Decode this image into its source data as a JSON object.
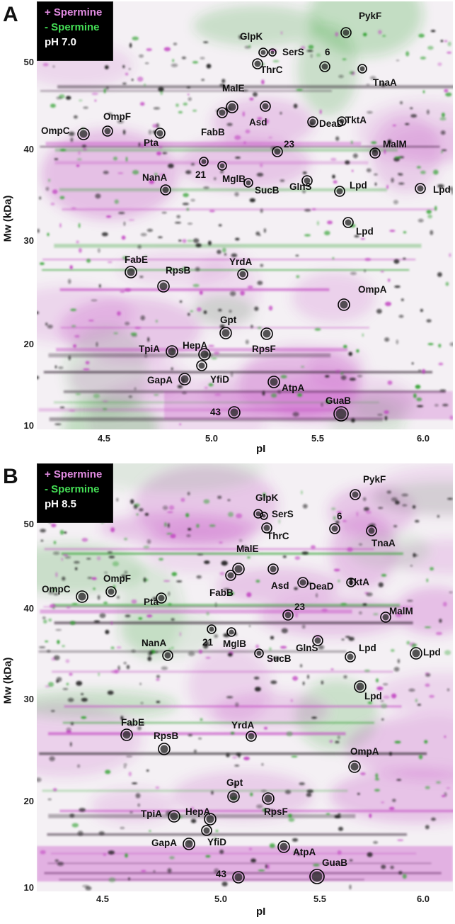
{
  "figure": {
    "legend": {
      "plus": "+ Spermine",
      "minus": "- Spermine"
    },
    "colors": {
      "spermine_plus": "#c040c0",
      "spermine_minus": "#2ca02c",
      "background": "#f4f0f4"
    },
    "y_axis": {
      "label": "Mw (kDa)",
      "ticks": [
        "50",
        "40",
        "30",
        "20",
        "10"
      ]
    },
    "x_axis": {
      "label": "pI",
      "ticks": [
        "4.5",
        "5.0",
        "5.5",
        "6.0"
      ]
    },
    "panels": [
      {
        "letter": "A",
        "ph": "pH 7.0",
        "spots": [
          {
            "label": "PykF"
          },
          {
            "label": "GlpK"
          },
          {
            "label": "SerS"
          },
          {
            "label": "6"
          },
          {
            "label": "ThrC"
          },
          {
            "label": "TnaA"
          },
          {
            "label": "MalE"
          },
          {
            "label": "OmpC"
          },
          {
            "label": "OmpF"
          },
          {
            "label": "FabB"
          },
          {
            "label": "Asd"
          },
          {
            "label": "DeaD"
          },
          {
            "label": "TktA"
          },
          {
            "label": "Pta"
          },
          {
            "label": "23"
          },
          {
            "label": "MalM"
          },
          {
            "label": "21"
          },
          {
            "label": "MglB"
          },
          {
            "label": "NanA"
          },
          {
            "label": "GlnS"
          },
          {
            "label": "SucB"
          },
          {
            "label": "Lpd"
          },
          {
            "label": "Lpd"
          },
          {
            "label": "Lpd"
          },
          {
            "label": "FabE"
          },
          {
            "label": "RpsB"
          },
          {
            "label": "YrdA"
          },
          {
            "label": "OmpA"
          },
          {
            "label": "Gpt"
          },
          {
            "label": "TpiA"
          },
          {
            "label": "HepA"
          },
          {
            "label": "RpsF"
          },
          {
            "label": "YfiD"
          },
          {
            "label": "GapA"
          },
          {
            "label": "AtpA"
          },
          {
            "label": "43"
          },
          {
            "label": "GuaB"
          }
        ]
      },
      {
        "letter": "B",
        "ph": "pH 8.5",
        "spots": [
          {
            "label": "PykF"
          },
          {
            "label": "GlpK"
          },
          {
            "label": "SerS"
          },
          {
            "label": "6"
          },
          {
            "label": "ThrC"
          },
          {
            "label": "TnaA"
          },
          {
            "label": "MalE"
          },
          {
            "label": "OmpC"
          },
          {
            "label": "OmpF"
          },
          {
            "label": "FabB"
          },
          {
            "label": "Asd"
          },
          {
            "label": "DeaD"
          },
          {
            "label": "TktA"
          },
          {
            "label": "Pta"
          },
          {
            "label": "23"
          },
          {
            "label": "MalM"
          },
          {
            "label": "21"
          },
          {
            "label": "MglB"
          },
          {
            "label": "NanA"
          },
          {
            "label": "GlnS"
          },
          {
            "label": "SucB"
          },
          {
            "label": "Lpd"
          },
          {
            "label": "Lpd"
          },
          {
            "label": "Lpd"
          },
          {
            "label": "FabE"
          },
          {
            "label": "RpsB"
          },
          {
            "label": "YrdA"
          },
          {
            "label": "OmpA"
          },
          {
            "label": "Gpt"
          },
          {
            "label": "TpiA"
          },
          {
            "label": "HepA"
          },
          {
            "label": "RpsF"
          },
          {
            "label": "YfiD"
          },
          {
            "label": "GapA"
          },
          {
            "label": "AtpA"
          },
          {
            "label": "43"
          },
          {
            "label": "GuaB"
          }
        ]
      }
    ]
  }
}
